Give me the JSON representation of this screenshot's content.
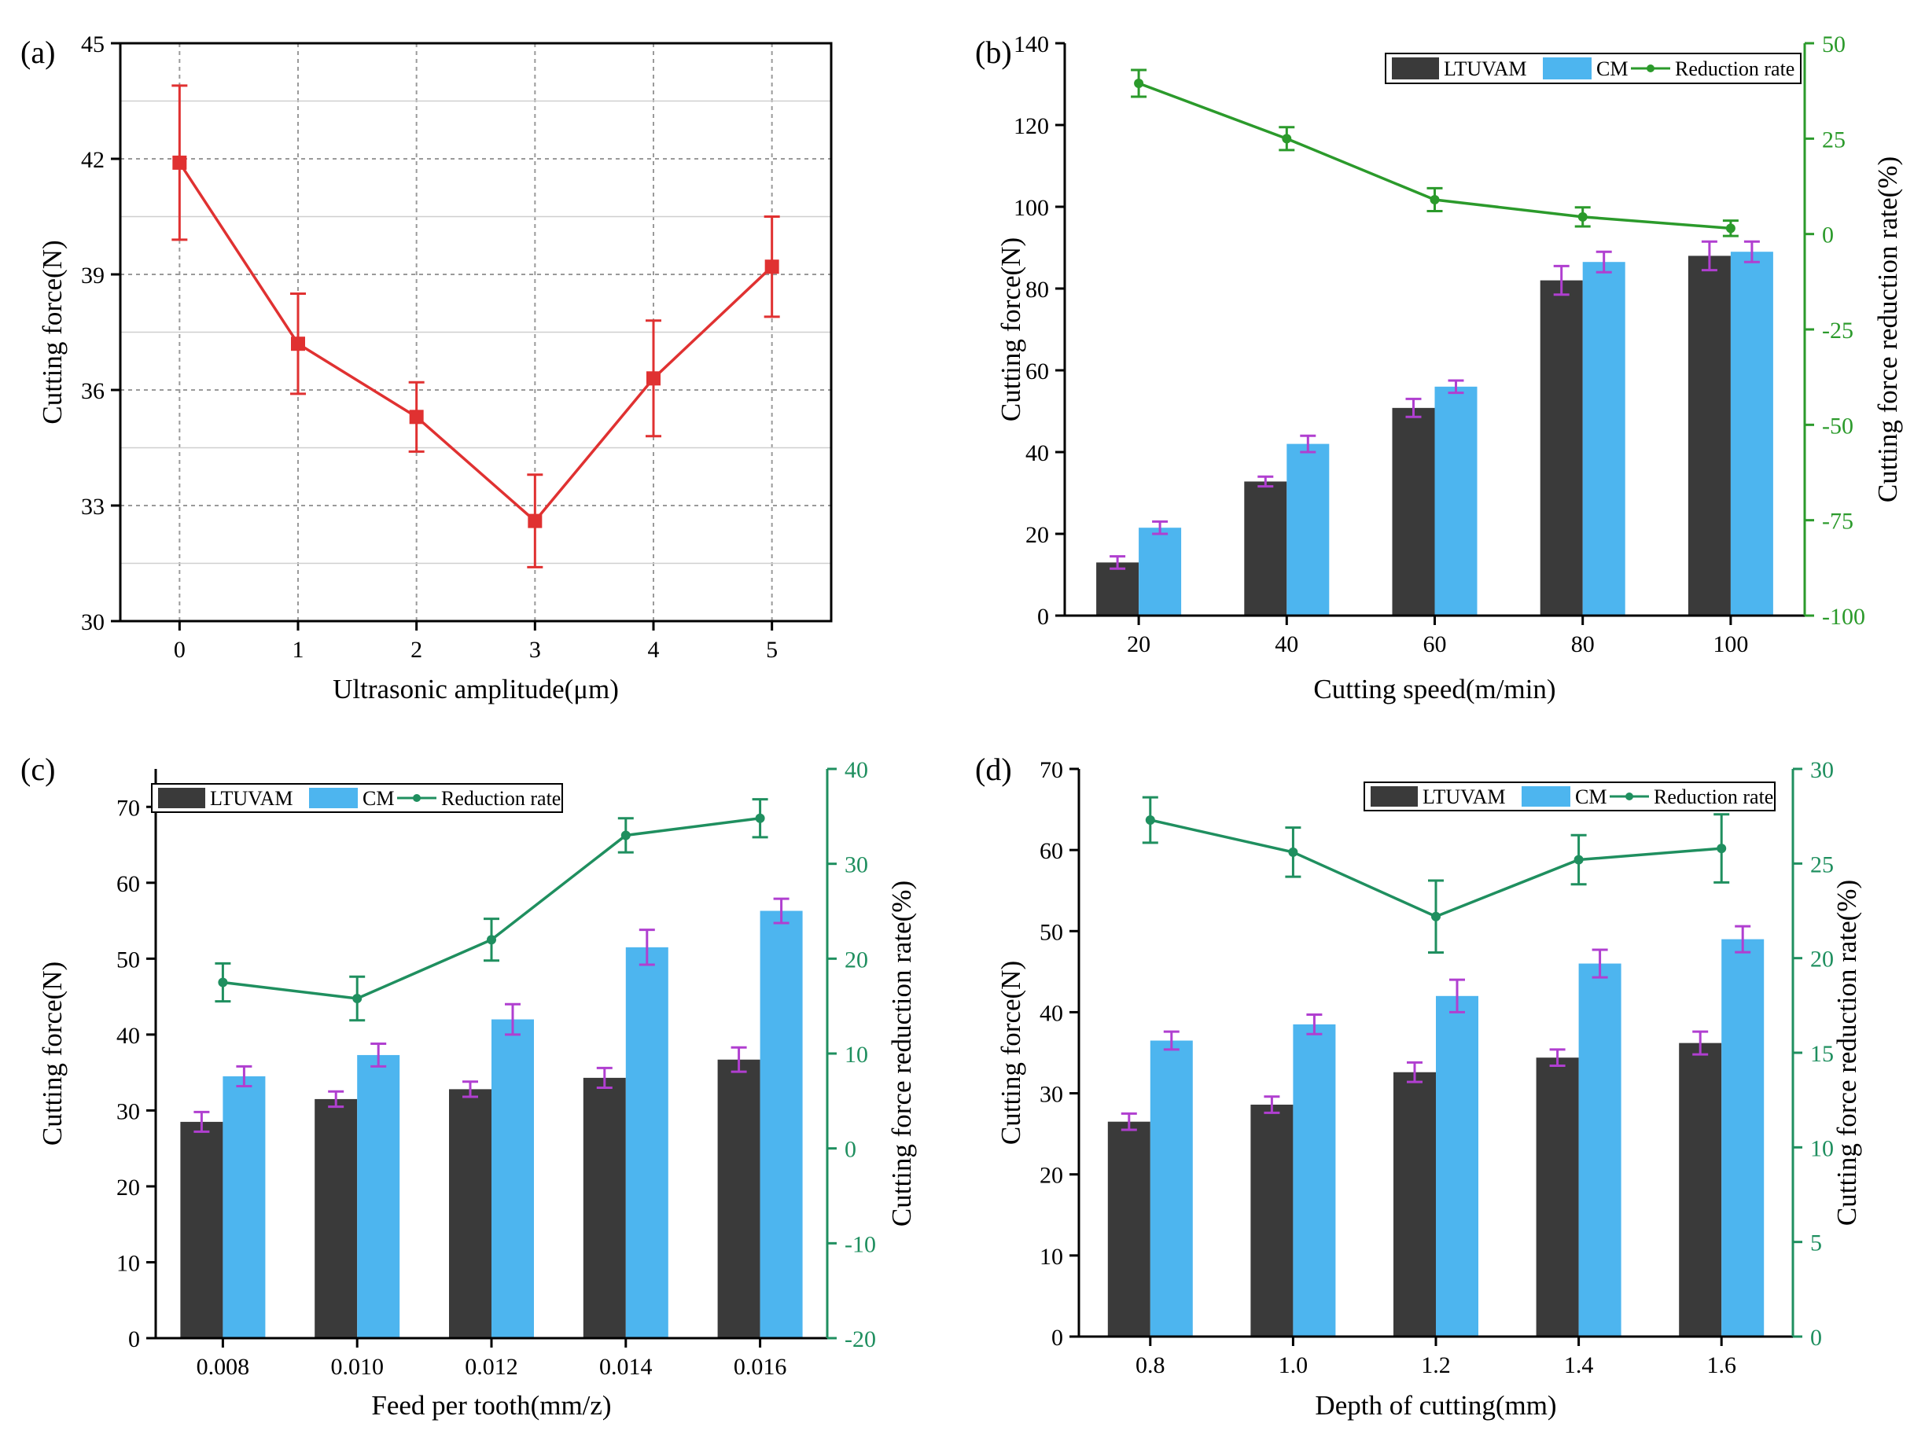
{
  "chart_data": [
    {
      "panel_label": "(a)",
      "type": "line",
      "xlabel": "Ultrasonic amplitude(μm)",
      "ylabel": "Cutting force(N)",
      "x": [
        0,
        1,
        2,
        3,
        4,
        5
      ],
      "xticks": [
        "0",
        "1",
        "2",
        "3",
        "4",
        "5"
      ],
      "xlim": [
        -0.5,
        5.5
      ],
      "ylim": [
        30,
        45
      ],
      "yticks": [
        "30",
        "33",
        "36",
        "39",
        "42",
        "45"
      ],
      "grid": true,
      "series": [
        {
          "name": "Cutting force",
          "values": [
            41.9,
            37.2,
            35.3,
            32.6,
            36.3,
            39.2
          ],
          "errors": [
            2.0,
            1.3,
            0.9,
            1.2,
            1.5,
            1.3
          ]
        }
      ]
    },
    {
      "panel_label": "(b)",
      "type": "bar",
      "xlabel": "Cutting speed(m/min)",
      "ylabel": "Cutting force(N)",
      "y2label": "Cutting force reduction rate(%)",
      "categories": [
        "20",
        "40",
        "60",
        "80",
        "100"
      ],
      "ylim": [
        0,
        140
      ],
      "yticks": [
        "0",
        "20",
        "40",
        "60",
        "80",
        "100",
        "120",
        "140"
      ],
      "y2lim": [
        -100,
        50
      ],
      "y2ticks": [
        "-100",
        "-75",
        "-50",
        "-25",
        "0",
        "25",
        "50"
      ],
      "legend": {
        "position": "top-right",
        "labels": [
          "LTUVAM",
          "CM",
          "Reduction rate"
        ]
      },
      "series": [
        {
          "name": "LTUVAM",
          "values": [
            13,
            32.8,
            50.8,
            82,
            88
          ],
          "errors": [
            1.5,
            1.2,
            2.2,
            3.5,
            3.5
          ]
        },
        {
          "name": "CM",
          "values": [
            21.5,
            42,
            56,
            86.5,
            89
          ],
          "errors": [
            1.5,
            2,
            1.5,
            2.5,
            2.5
          ]
        },
        {
          "name": "Reduction rate",
          "axis": "right",
          "values": [
            39.5,
            25,
            9,
            4.5,
            1.5
          ],
          "errors": [
            3.5,
            3,
            3,
            2.5,
            2
          ]
        }
      ]
    },
    {
      "panel_label": "(c)",
      "type": "bar",
      "xlabel": "Feed per tooth(mm/z)",
      "ylabel": "Cutting force(N)",
      "y2label": "Cutting force reduction rate(%)",
      "categories": [
        "0.008",
        "0.010",
        "0.012",
        "0.014",
        "0.016"
      ],
      "ylim": [
        0,
        75
      ],
      "yticks": [
        "0",
        "10",
        "20",
        "30",
        "40",
        "50",
        "60",
        "70"
      ],
      "y2lim": [
        -20,
        40
      ],
      "y2ticks": [
        "-20",
        "-10",
        "0",
        "10",
        "20",
        "30",
        "40"
      ],
      "legend": {
        "position": "top-left",
        "labels": [
          "LTUVAM",
          "CM",
          "Reduction rate"
        ]
      },
      "series": [
        {
          "name": "LTUVAM",
          "values": [
            28.5,
            31.5,
            32.8,
            34.3,
            36.7
          ],
          "errors": [
            1.3,
            1,
            1,
            1.3,
            1.6
          ]
        },
        {
          "name": "CM",
          "values": [
            34.5,
            37.3,
            42,
            51.5,
            56.3
          ],
          "errors": [
            1.3,
            1.5,
            2,
            2.3,
            1.6
          ]
        },
        {
          "name": "Reduction rate",
          "axis": "right",
          "values": [
            17.5,
            15.8,
            22,
            33,
            34.8
          ],
          "errors": [
            2,
            2.3,
            2.2,
            1.8,
            2
          ]
        }
      ]
    },
    {
      "panel_label": "(d)",
      "type": "bar",
      "xlabel": "Depth of cutting(mm)",
      "ylabel": "Cutting force(N)",
      "y2label": "Cutting force reduction rate(%)",
      "categories": [
        "0.8",
        "1.0",
        "1.2",
        "1.4",
        "1.6"
      ],
      "ylim": [
        0,
        70
      ],
      "yticks": [
        "0",
        "10",
        "20",
        "30",
        "40",
        "50",
        "60",
        "70"
      ],
      "y2lim": [
        0,
        30
      ],
      "y2ticks": [
        "0",
        "5",
        "10",
        "15",
        "20",
        "25",
        "30"
      ],
      "legend": {
        "position": "top-right",
        "labels": [
          "LTUVAM",
          "CM",
          "Reduction rate"
        ]
      },
      "series": [
        {
          "name": "LTUVAM",
          "values": [
            26.5,
            28.6,
            32.6,
            34.4,
            36.2
          ],
          "errors": [
            1,
            1,
            1.2,
            1,
            1.4
          ]
        },
        {
          "name": "CM",
          "values": [
            36.5,
            38.5,
            42,
            46,
            49
          ],
          "errors": [
            1.1,
            1.2,
            2,
            1.7,
            1.6
          ]
        },
        {
          "name": "Reduction rate",
          "axis": "right",
          "values": [
            27.3,
            25.6,
            22.2,
            25.2,
            25.8
          ],
          "errors": [
            1.2,
            1.3,
            1.9,
            1.3,
            1.8
          ]
        }
      ]
    }
  ],
  "colors": {
    "panel_a_line": "#e03131",
    "ltuvam_bar": "#3a3a3a",
    "cm_bar": "#4db5ef",
    "errorbar_bar": "#b03fd0",
    "green_b": "#2b9a2b",
    "green_cd": "#1f8f5f"
  }
}
